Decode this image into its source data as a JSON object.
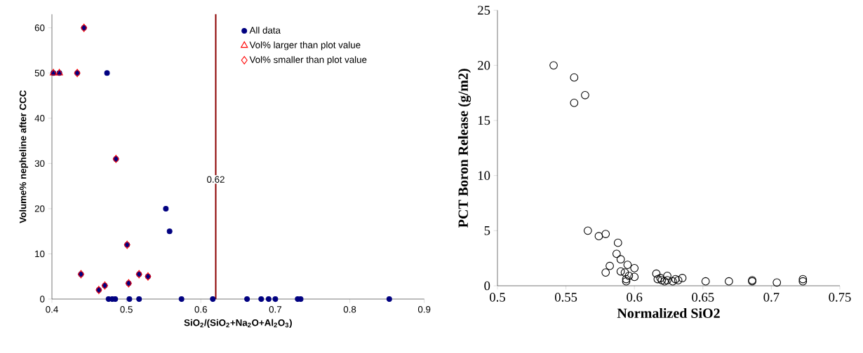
{
  "chart_data": [
    {
      "type": "scatter",
      "xlabel": "SiO$_{2}$/(SiO$_{2}$+Na$_{2}$O+Al$_{2}$O$_{3}$)",
      "ylabel": "**Volume% nepheline after CCC**",
      "xlim": [
        0.4,
        0.9
      ],
      "ylim": [
        0,
        63
      ],
      "xticks": [
        0.4,
        0.5,
        0.6,
        0.7,
        0.8,
        0.9
      ],
      "yticks": [
        0,
        10,
        20,
        30,
        40,
        50,
        60
      ],
      "legend": "top right",
      "grid": false,
      "series": [
        {
          "name": "All data",
          "color": "#000080",
          "marker": "circle",
          "x": [
            0.443,
            0.402,
            0.41,
            0.434,
            0.474,
            0.486,
            0.553,
            0.558,
            0.501,
            0.439,
            0.463,
            0.471,
            0.503,
            0.517,
            0.529,
            0.476,
            0.481,
            0.485,
            0.504,
            0.517,
            0.574,
            0.616,
            0.662,
            0.681,
            0.691,
            0.7,
            0.73,
            0.734,
            0.853
          ],
          "values": [
            60,
            50,
            50,
            50,
            50,
            31,
            20,
            15,
            12,
            5.5,
            2,
            3,
            3.5,
            5.5,
            5,
            0,
            0,
            0,
            0,
            0,
            0,
            0,
            0,
            0,
            0,
            0,
            0,
            0,
            0
          ]
        },
        {
          "name": "Vol% larger than plot value",
          "color": "#ff0000",
          "marker": "triangle",
          "x": [
            0.402,
            0.41
          ],
          "values": [
            50,
            50
          ]
        },
        {
          "name": "Vol% smaller than plot value",
          "color": "#ff0000",
          "marker": "diamond",
          "x": [
            0.443,
            0.434,
            0.486,
            0.501,
            0.439,
            0.463,
            0.471,
            0.503,
            0.517,
            0.529
          ],
          "values": [
            60,
            50,
            31,
            12,
            5.5,
            2,
            3,
            3.5,
            5.5,
            5
          ]
        }
      ],
      "ref_lines": [
        {
          "axis": "x",
          "value": 0.62,
          "label": "0.62",
          "color": "#8b0000"
        }
      ]
    },
    {
      "type": "scatter",
      "xlabel": "**Normalized SiO2**",
      "ylabel": "**PCT Boron Release (g/m2)**",
      "xlim": [
        0.5,
        0.75
      ],
      "ylim": [
        0,
        25
      ],
      "xticks": [
        0.5,
        0.55,
        0.6,
        0.65,
        0.7,
        0.75
      ],
      "yticks": [
        0,
        5,
        10,
        15,
        20,
        25
      ],
      "grid": false,
      "series": [
        {
          "color": "#000000",
          "marker": "circle",
          "x": [
            0.541,
            0.556,
            0.564,
            0.556,
            0.566,
            0.574,
            0.579,
            0.588,
            0.587,
            0.59,
            0.582,
            0.579,
            0.59,
            0.595,
            0.6,
            0.593,
            0.596,
            0.6,
            0.594,
            0.594,
            0.616,
            0.617,
            0.62,
            0.624,
            0.624,
            0.63,
            0.635,
            0.632,
            0.628,
            0.619,
            0.622,
            0.652,
            0.669,
            0.686,
            0.686,
            0.704,
            0.723,
            0.723
          ],
          "values": [
            20.0,
            18.9,
            17.3,
            16.6,
            5.0,
            4.5,
            4.7,
            3.9,
            2.9,
            2.4,
            1.8,
            1.2,
            1.3,
            1.9,
            1.6,
            1.2,
            0.9,
            0.8,
            0.6,
            0.4,
            1.1,
            0.6,
            0.5,
            0.9,
            0.5,
            0.6,
            0.7,
            0.5,
            0.4,
            0.7,
            0.4,
            0.4,
            0.4,
            0.5,
            0.4,
            0.3,
            0.6,
            0.4
          ]
        }
      ]
    }
  ]
}
